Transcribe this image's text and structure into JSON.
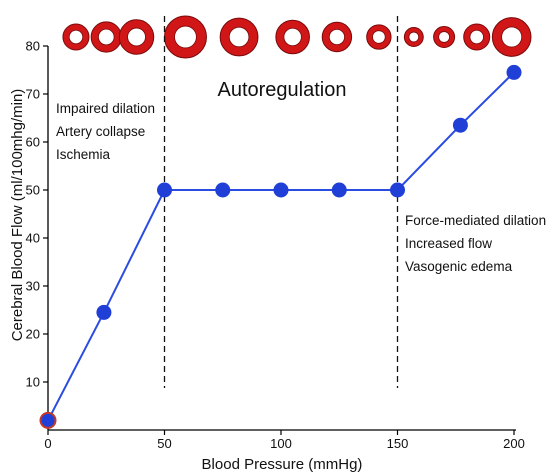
{
  "colors": {
    "series": "#1f3fd6",
    "line": "#2a4ce0",
    "vessel": "#d01616",
    "vessel_outline": "#7a0a0a",
    "axis": "#000000",
    "origin_marker": "#c0392b"
  },
  "chart_data": {
    "type": "line",
    "title": "",
    "xlabel": "Blood Pressure (mmHg)",
    "ylabel": "Cerebral Blood Flow (ml/100mhg/min)",
    "xlim": [
      0,
      200
    ],
    "ylim": [
      0,
      80
    ],
    "xticks": [
      0,
      50,
      100,
      150,
      200
    ],
    "yticks": [
      10,
      20,
      30,
      40,
      50,
      60,
      70,
      80
    ],
    "xtick_labels": [
      "0",
      "50",
      "100",
      "150",
      "200"
    ],
    "ytick_labels": [
      "10",
      "20",
      "30",
      "40",
      "50",
      "60",
      "70",
      "80"
    ],
    "grid": false,
    "legend": "none",
    "series": [
      {
        "x": [
          0,
          24,
          50,
          75,
          100,
          125,
          150,
          177,
          200
        ],
        "y": [
          2,
          24.5,
          50,
          50,
          50,
          50,
          50,
          63.5,
          74.5
        ]
      }
    ],
    "reference_lines_x": [
      50,
      150
    ],
    "vessel_diagram": {
      "description_shape": "vessel cross-sections (rings) along the top, size reflecting diameter",
      "x": [
        12,
        25,
        38,
        59,
        82,
        105,
        124,
        142,
        157,
        170,
        184,
        199
      ],
      "relative_size": [
        0.62,
        0.72,
        0.82,
        1.0,
        0.9,
        0.8,
        0.7,
        0.58,
        0.45,
        0.5,
        0.62,
        0.92
      ]
    },
    "annotations": {
      "region_left": [
        "Impaired dilation",
        "Artery collapse",
        "Ischemia"
      ],
      "region_middle": "Autoregulation",
      "region_right": [
        "Force-mediated dilation",
        "Increased flow",
        "Vasogenic edema"
      ]
    }
  }
}
